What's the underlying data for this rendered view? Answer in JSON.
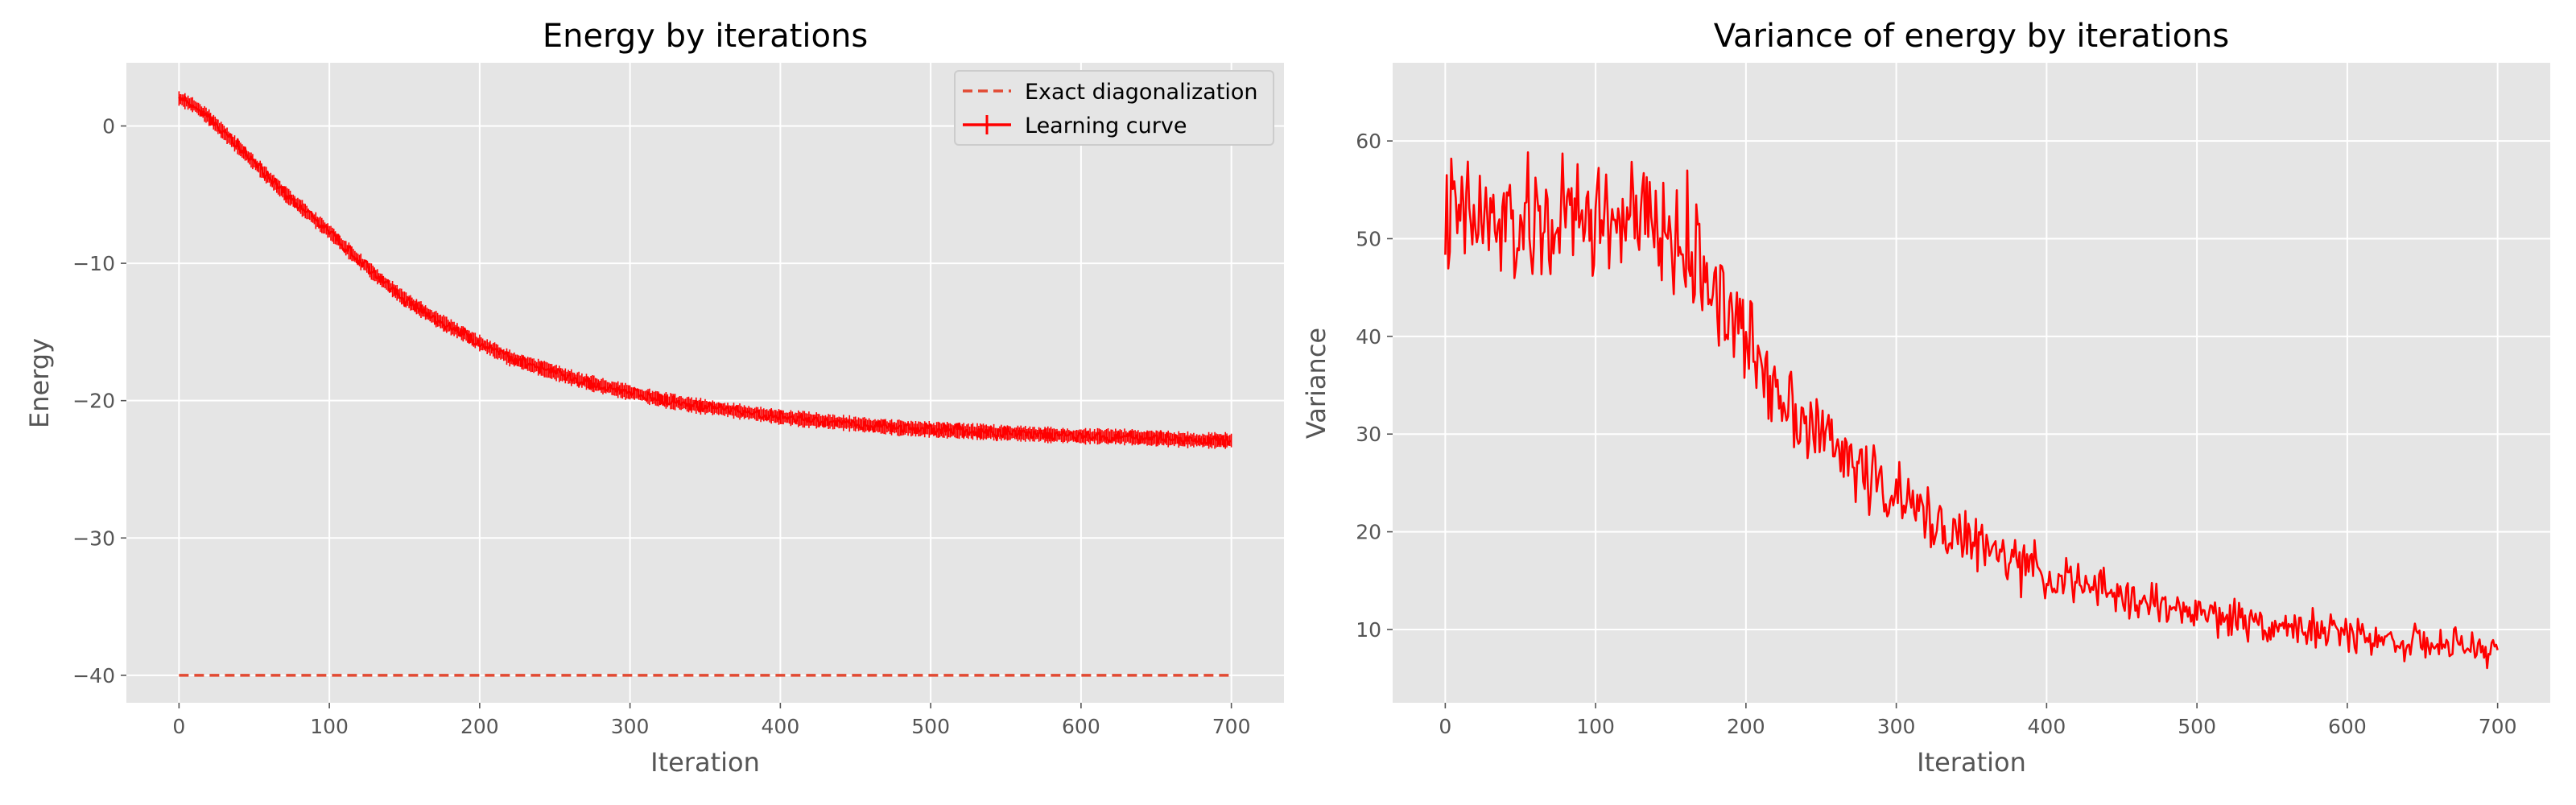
{
  "style": {
    "axes_bg": "#e5e5e5",
    "grid_color": "#ffffff",
    "series_color": "#ff0000",
    "exact_color": "#e24a33",
    "legend_bg": "#e5e5e5",
    "legend_border": "#cccccc"
  },
  "chart_data": [
    {
      "type": "line",
      "title": "Energy by iterations",
      "xlabel": "Iteration",
      "ylabel": "Energy",
      "xlim": [
        -35,
        735
      ],
      "ylim": [
        -42,
        4.6
      ],
      "xticks": [
        0,
        100,
        200,
        300,
        400,
        500,
        600,
        700
      ],
      "yticks": [
        0,
        -10,
        -20,
        -30,
        -40
      ],
      "grid": true,
      "legend_position": "top-right",
      "series": [
        {
          "name": "Exact diagonalization",
          "style": "dashed",
          "x": [
            0,
            700
          ],
          "y": [
            -40,
            -40
          ]
        },
        {
          "name": "Learning curve",
          "style": "solid-with-errorbars",
          "x": [
            0,
            10,
            20,
            30,
            40,
            50,
            60,
            70,
            80,
            90,
            100,
            110,
            120,
            130,
            140,
            150,
            160,
            170,
            180,
            190,
            200,
            220,
            240,
            260,
            280,
            300,
            320,
            340,
            360,
            380,
            400,
            420,
            440,
            460,
            480,
            500,
            520,
            540,
            560,
            580,
            600,
            620,
            640,
            660,
            680,
            700
          ],
          "y": [
            2.0,
            1.5,
            0.6,
            -0.5,
            -1.6,
            -2.7,
            -3.8,
            -4.9,
            -5.8,
            -6.8,
            -7.7,
            -8.8,
            -9.8,
            -10.8,
            -11.7,
            -12.6,
            -13.3,
            -14.0,
            -14.6,
            -15.2,
            -15.8,
            -16.9,
            -17.6,
            -18.3,
            -18.9,
            -19.4,
            -19.9,
            -20.3,
            -20.6,
            -20.9,
            -21.2,
            -21.4,
            -21.6,
            -21.8,
            -22.0,
            -22.1,
            -22.2,
            -22.3,
            -22.4,
            -22.5,
            -22.6,
            -22.6,
            -22.7,
            -22.8,
            -22.9,
            -22.9
          ],
          "noise": 0.35
        }
      ]
    },
    {
      "type": "line",
      "title": "Variance of energy by iterations",
      "xlabel": "Iteration",
      "ylabel": "Variance",
      "xlim": [
        -35,
        735
      ],
      "ylim": [
        2.5,
        68
      ],
      "xticks": [
        0,
        100,
        200,
        300,
        400,
        500,
        600,
        700
      ],
      "yticks": [
        10,
        20,
        30,
        40,
        50,
        60
      ],
      "grid": true,
      "series": [
        {
          "style": "solid",
          "x": [
            0,
            20,
            40,
            60,
            80,
            100,
            120,
            140,
            160,
            170,
            180,
            190,
            200,
            220,
            240,
            260,
            280,
            300,
            320,
            340,
            360,
            380,
            400,
            420,
            440,
            460,
            480,
            500,
            520,
            540,
            560,
            580,
            600,
            620,
            640,
            660,
            680,
            700
          ],
          "y": [
            52,
            52,
            51,
            51,
            52,
            52,
            52,
            51,
            49,
            47,
            45,
            42,
            39.5,
            35,
            31.5,
            28.5,
            26,
            23.5,
            21.5,
            19.8,
            18.2,
            16.8,
            15.6,
            14.6,
            13.8,
            13.0,
            12.3,
            11.8,
            11.2,
            10.8,
            10.3,
            9.9,
            9.5,
            9.1,
            8.7,
            8.4,
            8.1,
            7.9
          ],
          "noise_max": 5.5,
          "noise_min": 1.4
        }
      ]
    }
  ]
}
